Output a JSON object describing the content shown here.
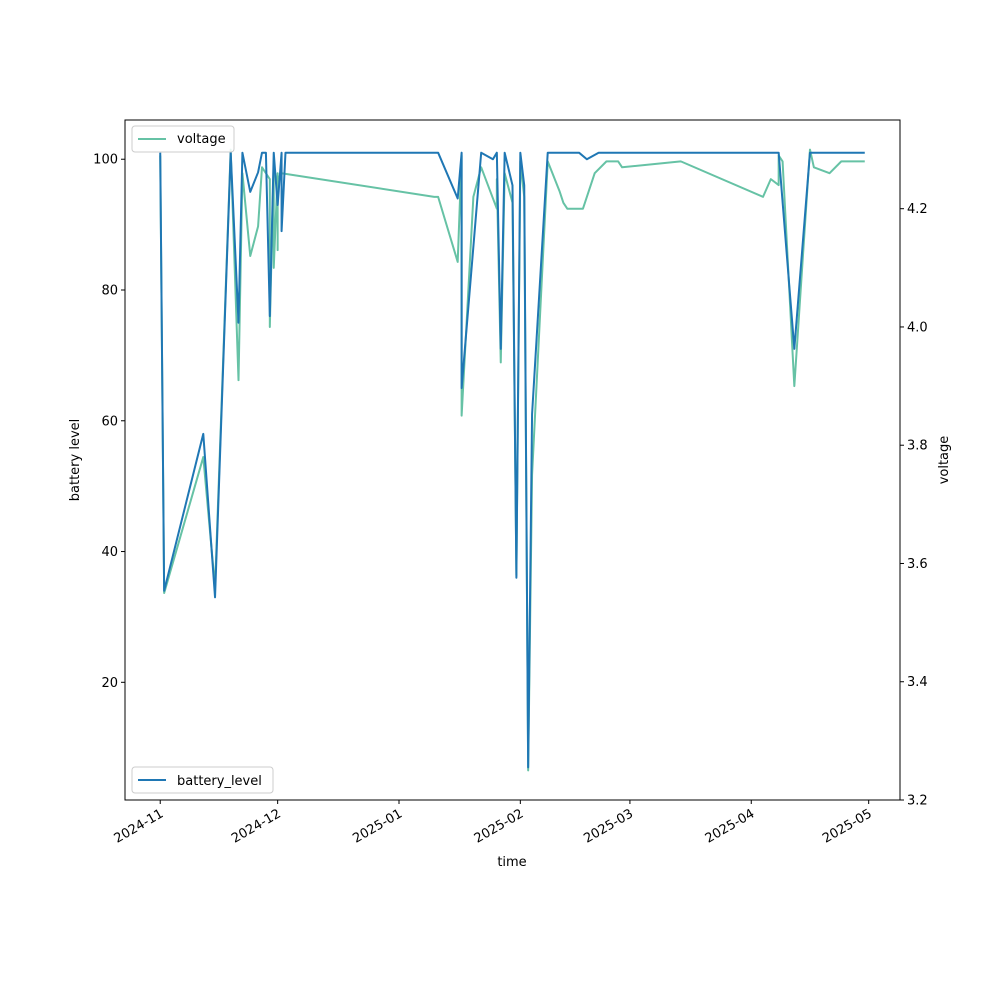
{
  "chart_data": {
    "type": "line",
    "xlabel": "time",
    "x_ticks": [
      "2024-11",
      "2024-12",
      "2025-01",
      "2025-02",
      "2025-03",
      "2025-04",
      "2025-05"
    ],
    "xlim": [
      "2024-10-23",
      "2025-05-09"
    ],
    "grid": false,
    "axes": {
      "left": {
        "label": "battery level",
        "ylim": [
          2.0,
          106.0
        ],
        "ticks": [
          20,
          40,
          60,
          80,
          100
        ]
      },
      "right": {
        "label": "voltage",
        "ylim": [
          3.2,
          4.35
        ],
        "ticks": [
          "3.2",
          "3.4",
          "3.6",
          "3.8",
          "4.0",
          "4.2"
        ]
      }
    },
    "series": [
      {
        "name": "battery_level",
        "axis": "left",
        "color": "#1f77b4",
        "legend_position": "lower-left",
        "points": [
          [
            "2024-11-01",
            101
          ],
          [
            "2024-11-02",
            34
          ],
          [
            "2024-11-12",
            58
          ],
          [
            "2024-11-15",
            33
          ],
          [
            "2024-11-19",
            101
          ],
          [
            "2024-11-21",
            75
          ],
          [
            "2024-11-22",
            101
          ],
          [
            "2024-11-24",
            95
          ],
          [
            "2024-11-26",
            98
          ],
          [
            "2024-11-27",
            101
          ],
          [
            "2024-11-28",
            101
          ],
          [
            "2024-11-29",
            76
          ],
          [
            "2024-11-30",
            101
          ],
          [
            "2024-12-01",
            93
          ],
          [
            "2024-12-02",
            101
          ],
          [
            "2024-12-02",
            89
          ],
          [
            "2024-12-03",
            101
          ],
          [
            "2025-01-11",
            101
          ],
          [
            "2025-01-16",
            94
          ],
          [
            "2025-01-17",
            101
          ],
          [
            "2025-01-17",
            65
          ],
          [
            "2025-01-22",
            101
          ],
          [
            "2025-01-25",
            100
          ],
          [
            "2025-01-26",
            101
          ],
          [
            "2025-01-27",
            71
          ],
          [
            "2025-01-28",
            101
          ],
          [
            "2025-01-30",
            96
          ],
          [
            "2025-01-31",
            36
          ],
          [
            "2025-01-31",
            37
          ],
          [
            "2025-02-01",
            101
          ],
          [
            "2025-02-02",
            96
          ],
          [
            "2025-02-03",
            7
          ],
          [
            "2025-02-04",
            61
          ],
          [
            "2025-02-08",
            101
          ],
          [
            "2025-02-14",
            101
          ],
          [
            "2025-02-16",
            101
          ],
          [
            "2025-02-18",
            100
          ],
          [
            "2025-02-21",
            101
          ],
          [
            "2025-04-06",
            101
          ],
          [
            "2025-04-08",
            101
          ],
          [
            "2025-04-12",
            71
          ],
          [
            "2025-04-16",
            101
          ],
          [
            "2025-04-30",
            101
          ]
        ]
      },
      {
        "name": "voltage",
        "axis": "right",
        "color": "#66c2a5",
        "legend_position": "upper-left",
        "points": [
          [
            "2024-11-01",
            4.29
          ],
          [
            "2024-11-02",
            3.55
          ],
          [
            "2024-11-12",
            3.78
          ],
          [
            "2024-11-15",
            3.56
          ],
          [
            "2024-11-19",
            4.3
          ],
          [
            "2024-11-21",
            3.91
          ],
          [
            "2024-11-22",
            4.26
          ],
          [
            "2024-11-24",
            4.12
          ],
          [
            "2024-11-26",
            4.17
          ],
          [
            "2024-11-27",
            4.27
          ],
          [
            "2024-11-29",
            4.25
          ],
          [
            "2024-11-29",
            4.0
          ],
          [
            "2024-11-30",
            4.28
          ],
          [
            "2024-11-30",
            4.1
          ],
          [
            "2024-12-01",
            4.26
          ],
          [
            "2024-12-01",
            4.13
          ],
          [
            "2024-12-01",
            4.25
          ],
          [
            "2024-12-02",
            4.26
          ],
          [
            "2025-01-10",
            4.22
          ],
          [
            "2025-01-11",
            4.22
          ],
          [
            "2025-01-16",
            4.11
          ],
          [
            "2025-01-17",
            4.29
          ],
          [
            "2025-01-17",
            3.85
          ],
          [
            "2025-01-20",
            4.22
          ],
          [
            "2025-01-22",
            4.27
          ],
          [
            "2025-01-26",
            4.2
          ],
          [
            "2025-01-26",
            4.25
          ],
          [
            "2025-01-27",
            3.94
          ],
          [
            "2025-01-28",
            4.26
          ],
          [
            "2025-01-30",
            4.21
          ],
          [
            "2025-01-31",
            3.58
          ],
          [
            "2025-02-01",
            4.28
          ],
          [
            "2025-02-02",
            4.22
          ],
          [
            "2025-02-03",
            3.25
          ],
          [
            "2025-02-04",
            3.75
          ],
          [
            "2025-02-08",
            4.28
          ],
          [
            "2025-02-11",
            4.23
          ],
          [
            "2025-02-12",
            4.21
          ],
          [
            "2025-02-13",
            4.2
          ],
          [
            "2025-02-17",
            4.2
          ],
          [
            "2025-02-20",
            4.26
          ],
          [
            "2025-02-23",
            4.28
          ],
          [
            "2025-02-26",
            4.28
          ],
          [
            "2025-02-27",
            4.27
          ],
          [
            "2025-03-14",
            4.28
          ],
          [
            "2025-04-04",
            4.22
          ],
          [
            "2025-04-06",
            4.25
          ],
          [
            "2025-04-08",
            4.24
          ],
          [
            "2025-04-08",
            4.29
          ],
          [
            "2025-04-09",
            4.28
          ],
          [
            "2025-04-12",
            3.9
          ],
          [
            "2025-04-16",
            4.3
          ],
          [
            "2025-04-17",
            4.27
          ],
          [
            "2025-04-21",
            4.26
          ],
          [
            "2025-04-24",
            4.28
          ],
          [
            "2025-04-25",
            4.28
          ],
          [
            "2025-04-27",
            4.28
          ],
          [
            "2025-04-30",
            4.28
          ]
        ]
      }
    ]
  }
}
